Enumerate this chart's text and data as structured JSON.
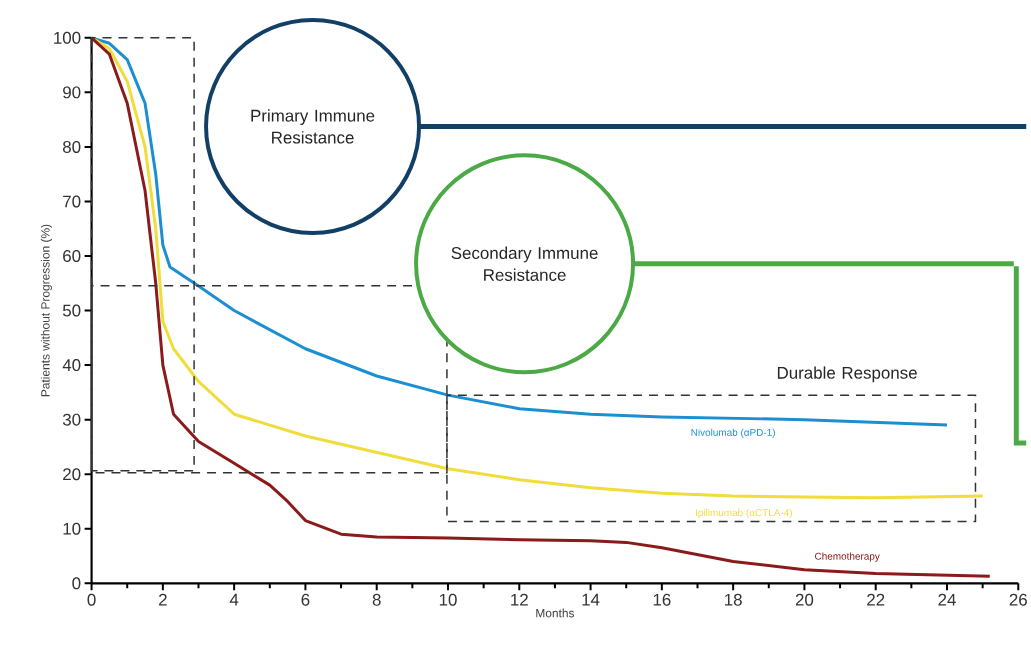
{
  "chart_data": {
    "type": "line",
    "xlabel": "Months",
    "ylabel": "Patients without Progression (%)",
    "xlim": [
      0,
      26
    ],
    "ylim": [
      0,
      100
    ],
    "xticks": [
      0,
      2,
      4,
      6,
      8,
      10,
      12,
      14,
      16,
      18,
      20,
      22,
      24,
      26
    ],
    "yticks": [
      0,
      10,
      20,
      30,
      40,
      50,
      60,
      70,
      80,
      90,
      100
    ],
    "grid": false,
    "marker": "none",
    "line_style": "solid",
    "series": [
      {
        "name": "Nivolumab (αPD-1)",
        "color": "#1b8fd2",
        "x": [
          0,
          0.5,
          1,
          1.5,
          1.8,
          2,
          2.2,
          3,
          4,
          6,
          8,
          10,
          12,
          14,
          16,
          20,
          24
        ],
        "values": [
          100,
          99,
          96,
          88,
          75,
          62,
          58,
          54.5,
          50,
          43,
          38,
          34.5,
          32,
          31,
          30.5,
          30,
          29
        ]
      },
      {
        "name": "Ipilimumab (αCTLA-4)",
        "color": "#f0dc3a",
        "x": [
          0,
          0.5,
          1,
          1.5,
          1.8,
          2,
          2.3,
          3,
          4,
          6,
          8,
          10,
          12,
          14,
          16,
          18,
          20,
          22,
          25
        ],
        "values": [
          100,
          98,
          92,
          80,
          65,
          48,
          43,
          37,
          31,
          27,
          24,
          21,
          19,
          17.5,
          16.5,
          16,
          15.8,
          15.7,
          16
        ]
      },
      {
        "name": "Chemotherapy",
        "color": "#8b1a1a",
        "x": [
          0,
          0.5,
          1,
          1.5,
          1.8,
          2,
          2.3,
          3,
          4,
          5,
          5.5,
          6,
          7,
          8,
          10,
          12,
          14,
          15,
          16,
          18,
          20,
          22,
          25.2
        ],
        "values": [
          100,
          97,
          88,
          72,
          55,
          40,
          31,
          26,
          22,
          18,
          15,
          11.5,
          9,
          8.5,
          8.3,
          8,
          7.8,
          7.5,
          6.5,
          4,
          2.5,
          1.8,
          1.3
        ]
      }
    ],
    "annotations": [
      "Primary Immune Resistance",
      "Secondary Immune Resistance",
      "Durable Response"
    ]
  }
}
